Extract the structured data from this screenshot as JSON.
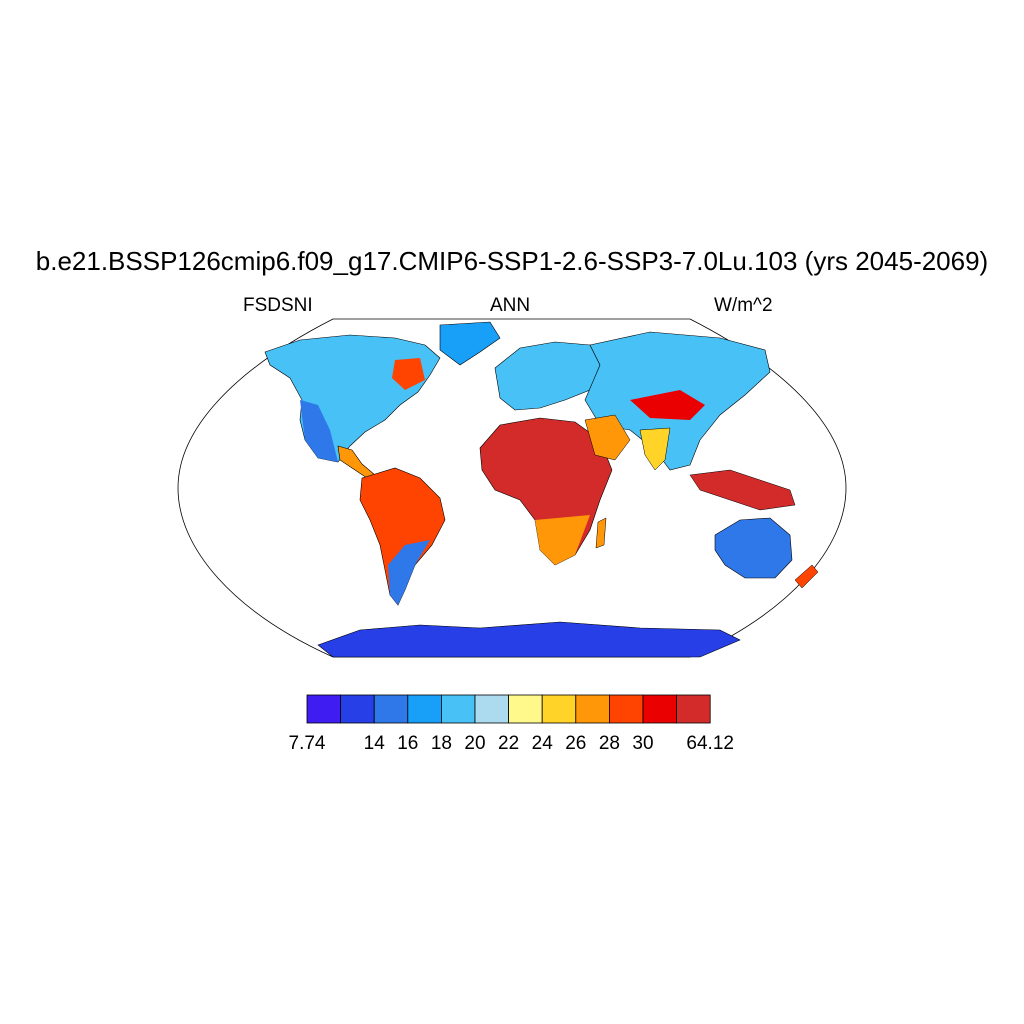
{
  "title": "b.e21.BSSP126cmip6.f09_g17.CMIP6-SSP1-2.6-SSP3-7.0Lu.103 (yrs 2045-2069)",
  "subtitle_left": "FSDSNI",
  "subtitle_center": "ANN",
  "subtitle_right": "W/m^2",
  "colorbar": {
    "colors": [
      "#3f1cf2",
      "#263fe6",
      "#2f78ea",
      "#18a0f8",
      "#47c1f6",
      "#acdaee",
      "#fff88a",
      "#ffd327",
      "#ff9708",
      "#ff4300",
      "#ea0000",
      "#d32a2a"
    ],
    "labels": [
      {
        "text": "7.74",
        "edge": 0
      },
      {
        "text": "14",
        "edge": 2
      },
      {
        "text": "16",
        "edge": 3
      },
      {
        "text": "18",
        "edge": 4
      },
      {
        "text": "20",
        "edge": 5
      },
      {
        "text": "22",
        "edge": 6
      },
      {
        "text": "24",
        "edge": 7
      },
      {
        "text": "26",
        "edge": 8
      },
      {
        "text": "28",
        "edge": 9
      },
      {
        "text": "30",
        "edge": 10
      },
      {
        "text": "64.12",
        "edge": 12
      }
    ]
  },
  "regions": [
    {
      "name": "north-america",
      "color": "#47c1f6"
    },
    {
      "name": "greenland",
      "color": "#18a0f8"
    },
    {
      "name": "south-america",
      "color": "#ff4300"
    },
    {
      "name": "europe",
      "color": "#47c1f6"
    },
    {
      "name": "africa",
      "color": "#d32a2a"
    },
    {
      "name": "asia",
      "color": "#47c1f6"
    },
    {
      "name": "australia",
      "color": "#2f78ea"
    },
    {
      "name": "antarctica",
      "color": "#263fe6"
    }
  ]
}
